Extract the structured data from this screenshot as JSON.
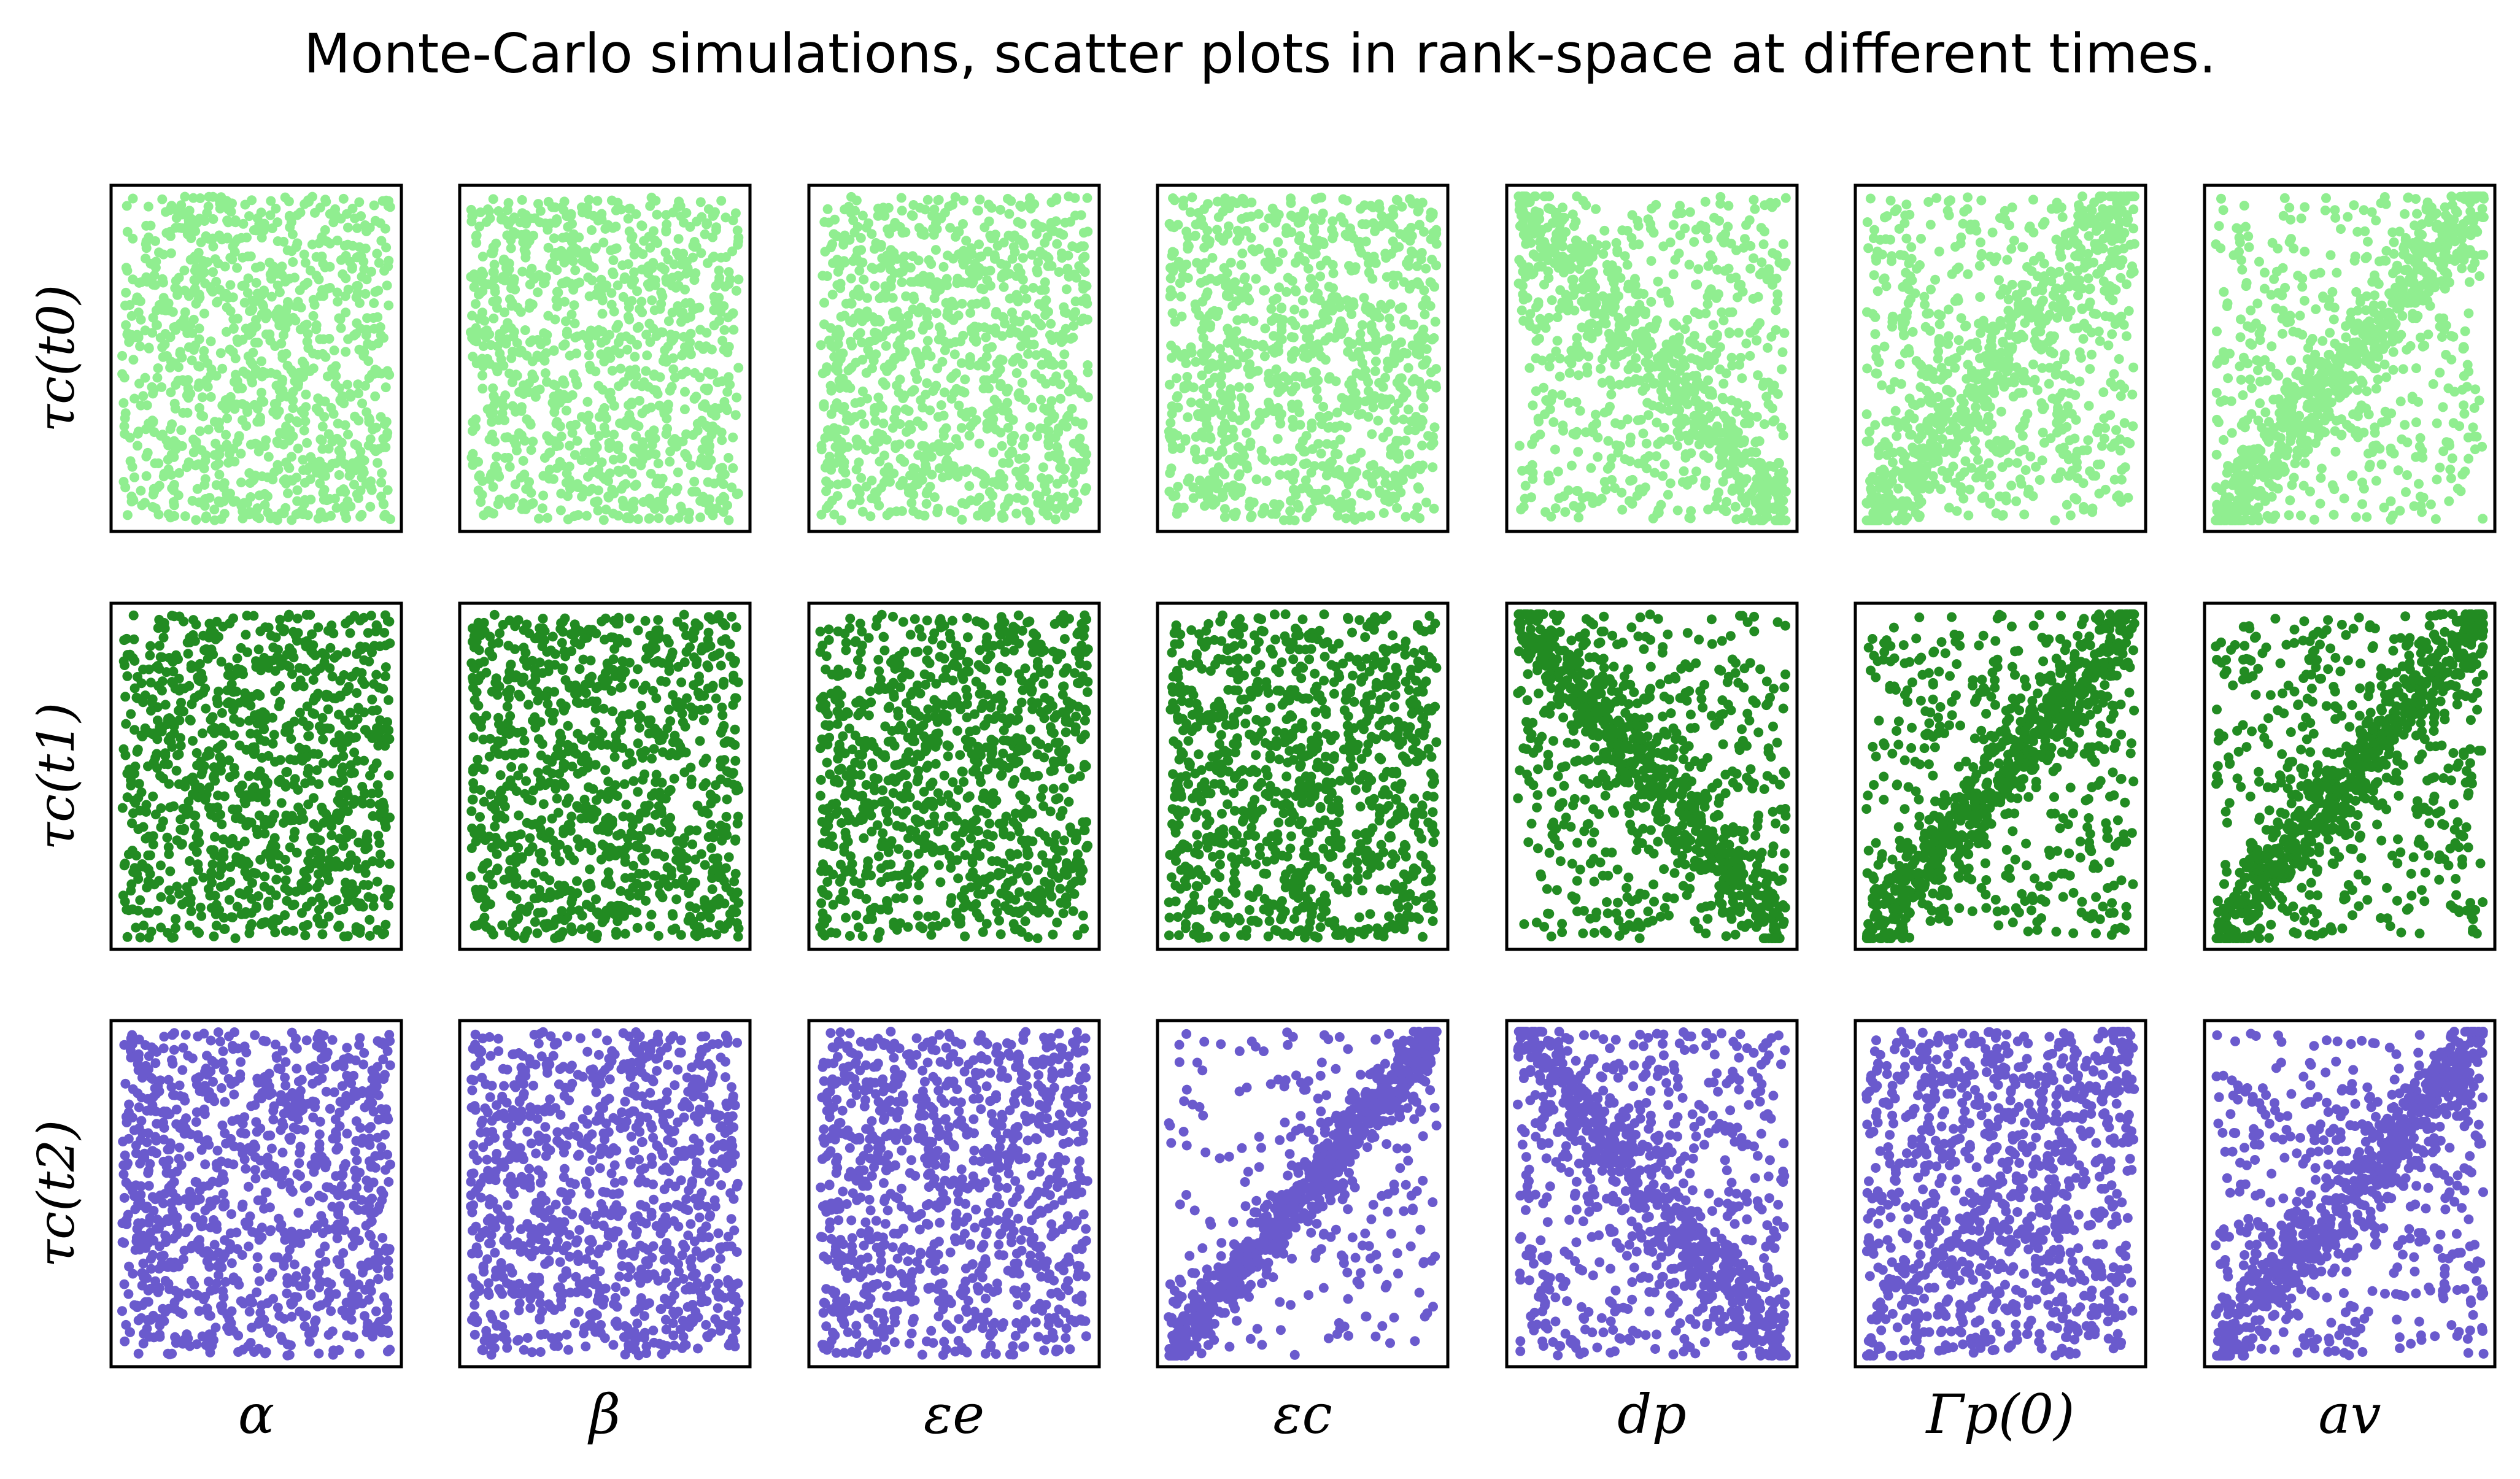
{
  "chart_data": {
    "type": "scatter",
    "title": "Monte-Carlo simulations, scatter plots in rank-space at different times.",
    "layout": "grid",
    "rows": [
      {
        "label": "τc(t0)",
        "color": "#90ee90"
      },
      {
        "label": "τc(t1)",
        "color": "#228b22"
      },
      {
        "label": "τc(t2)",
        "color": "#6a5acd"
      }
    ],
    "columns": [
      "α",
      "β",
      "εe",
      "εc",
      "dp",
      "Γp(0)",
      "av"
    ],
    "x_range": [
      0,
      1
    ],
    "y_range": [
      0,
      1
    ],
    "points_per_panel": 1000,
    "axes_ticks": false,
    "grid": false,
    "dependence": [
      [
        {
          "type": "uniform"
        },
        {
          "type": "uniform"
        },
        {
          "type": "uniform"
        },
        {
          "type": "uniform"
        },
        {
          "type": "negative",
          "strength": 0.45
        },
        {
          "type": "positive",
          "strength": 0.45
        },
        {
          "type": "positive",
          "strength": 0.55
        }
      ],
      [
        {
          "type": "uniform"
        },
        {
          "type": "uniform"
        },
        {
          "type": "uniform"
        },
        {
          "type": "uniform"
        },
        {
          "type": "negative",
          "strength": 0.55
        },
        {
          "type": "positive",
          "strength": 0.55
        },
        {
          "type": "positive",
          "strength": 0.55
        }
      ],
      [
        {
          "type": "uniform"
        },
        {
          "type": "uniform"
        },
        {
          "type": "uniform"
        },
        {
          "type": "positive",
          "strength": 0.75
        },
        {
          "type": "negative",
          "strength": 0.5
        },
        {
          "type": "positive",
          "strength": 0.15
        },
        {
          "type": "positive",
          "strength": 0.55
        }
      ]
    ]
  }
}
